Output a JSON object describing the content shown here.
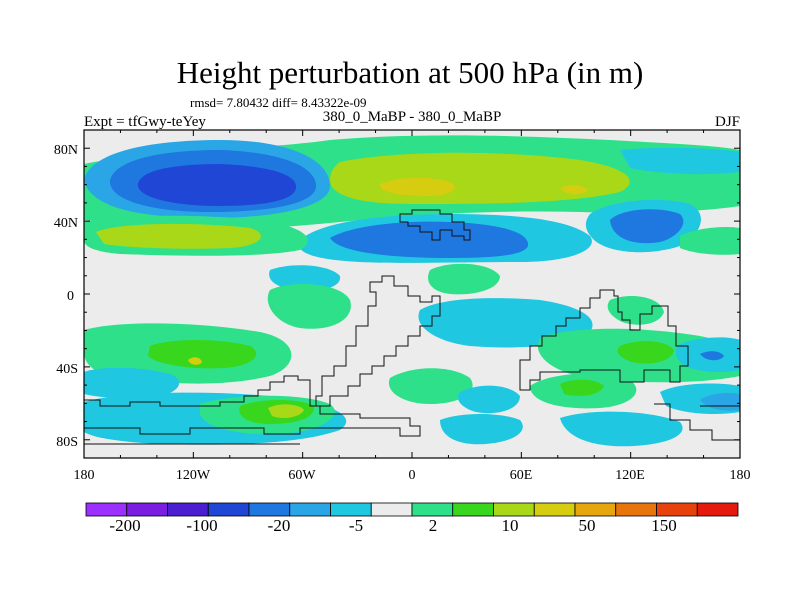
{
  "title": "Height perturbation at 500 hPa (in m)",
  "stats_text": "rmsd= 7.80432 diff= 8.43322e-09",
  "left_label": "Expt = tfGwy-teYey",
  "center_label": "380_0_MaBP - 380_0_MaBP",
  "right_label": "DJF",
  "y_tick_labels": [
    "80N",
    "40N",
    "0",
    "40S",
    "80S"
  ],
  "x_tick_labels": [
    "180",
    "120W",
    "60W",
    "0",
    "60E",
    "120E",
    "180"
  ],
  "colorbar": {
    "colors": [
      "#9b30ff",
      "#7a1fe0",
      "#4b1fd0",
      "#2046d6",
      "#1f78e0",
      "#2aa6e6",
      "#20c7e0",
      "#ececec",
      "#2ee08a",
      "#38d61c",
      "#a8d818",
      "#d6cc10",
      "#e6a60e",
      "#e8740c",
      "#e8420c",
      "#e41a0c"
    ],
    "labels": [
      "-200",
      "-100",
      "-20",
      "-5",
      "2",
      "10",
      "50",
      "150"
    ]
  },
  "palette": {
    "neutral": "#ececec",
    "cyan": "#20c7e0",
    "lightblue": "#2aa6e6",
    "blue": "#1f78e0",
    "deepblue": "#2046d6",
    "green": "#2ee08a",
    "brightgreen": "#38d61c",
    "yellowgreen": "#a8d818",
    "yellow": "#d6cc10",
    "orange": "#e6a60e"
  }
}
